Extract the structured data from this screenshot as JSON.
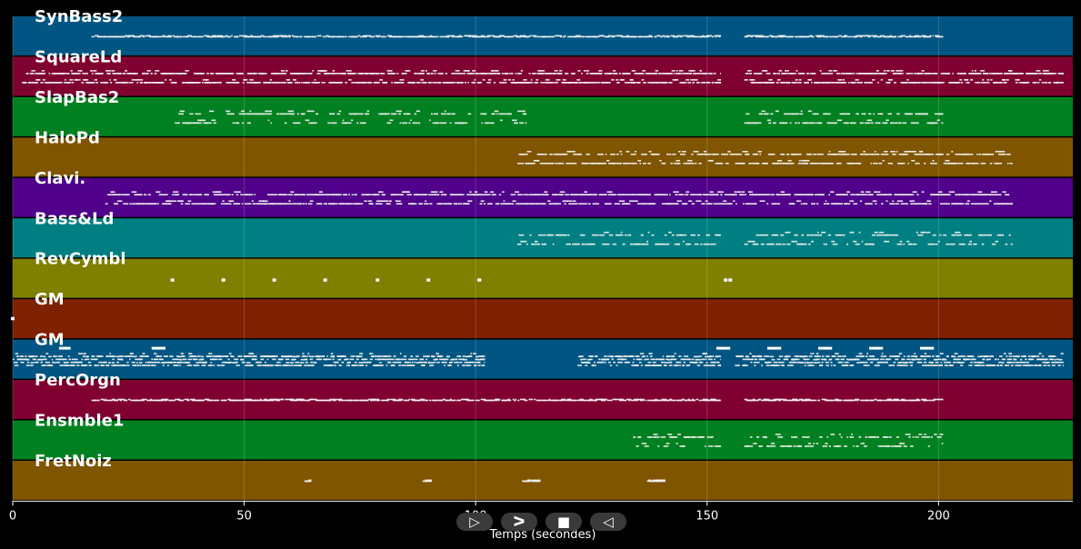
{
  "chart_data": {
    "type": "piano-roll",
    "xlabel": "Temps (secondes)",
    "xlim": [
      0,
      229
    ],
    "xticks": [
      0,
      50,
      100,
      150,
      200
    ],
    "grid": true,
    "tracks": [
      {
        "name": "SynBass2",
        "color": "#005582",
        "segments": [
          [
            17,
            153
          ],
          [
            158,
            201
          ]
        ],
        "density": 0.55,
        "rows": 1,
        "style": "dash"
      },
      {
        "name": "SquareLd",
        "color": "#7f0030",
        "segments": [
          [
            2,
            153
          ],
          [
            158,
            227
          ]
        ],
        "density": 1.25,
        "rows": 2,
        "style": "dense"
      },
      {
        "name": "SlapBas2",
        "color": "#008020",
        "segments": [
          [
            35,
            44
          ],
          [
            46,
            56
          ],
          [
            57,
            66
          ],
          [
            68,
            77
          ],
          [
            79,
            88
          ],
          [
            90,
            99
          ],
          [
            101,
            111
          ],
          [
            158,
            201
          ]
        ],
        "density": 0.6,
        "rows": 2,
        "style": "dash"
      },
      {
        "name": "HaloPd",
        "color": "#7f5500",
        "segments": [
          [
            109,
            216
          ]
        ],
        "density": 0.7,
        "rows": 2,
        "style": "dash"
      },
      {
        "name": "Clavi.",
        "color": "#50008a",
        "segments": [
          [
            20,
            216
          ]
        ],
        "density": 0.85,
        "rows": 2,
        "style": "dash"
      },
      {
        "name": "Bass&Ld",
        "color": "#007f82",
        "segments": [
          [
            109,
            153
          ],
          [
            158,
            216
          ]
        ],
        "density": 0.45,
        "rows": 2,
        "style": "sparse"
      },
      {
        "name": "RevCymbl",
        "color": "#7f7f00",
        "points": [
          34.5,
          45.5,
          56.5,
          67.5,
          78.8,
          89.8,
          100.8,
          154,
          155
        ],
        "style": "dots"
      },
      {
        "name": "GM",
        "color": "#7f2000",
        "points": [
          0
        ],
        "style": "dots"
      },
      {
        "name": "GM",
        "color": "#005582",
        "segments": [
          [
            0,
            102
          ],
          [
            122,
            153
          ],
          [
            156,
            227
          ]
        ],
        "density": 1.6,
        "rows": 4,
        "style": "dense",
        "bars": [
          [
            10,
            12.5
          ],
          [
            30,
            33
          ],
          [
            152,
            155
          ],
          [
            163,
            166
          ],
          [
            174,
            177
          ],
          [
            185,
            188
          ],
          [
            196,
            199
          ]
        ]
      },
      {
        "name": "PercOrgn",
        "color": "#7f0030",
        "segments": [
          [
            17,
            153
          ],
          [
            158,
            201
          ]
        ],
        "density": 0.55,
        "rows": 1,
        "style": "dash"
      },
      {
        "name": "Ensmble1",
        "color": "#008020",
        "segments": [
          [
            134,
            153
          ],
          [
            158,
            201
          ]
        ],
        "density": 0.5,
        "rows": 2,
        "style": "sparse"
      },
      {
        "name": "FretNoiz",
        "color": "#7f5500",
        "segments": [
          [
            63,
            64.5
          ],
          [
            88.5,
            90.5
          ],
          [
            110,
            114
          ],
          [
            137,
            141
          ]
        ],
        "density": 1.2,
        "rows": 1,
        "style": "dash"
      }
    ]
  },
  "controls": {
    "play_label": "▷",
    "forward_label": "ᐳ",
    "stop_label": "■",
    "back_label": "◁"
  }
}
